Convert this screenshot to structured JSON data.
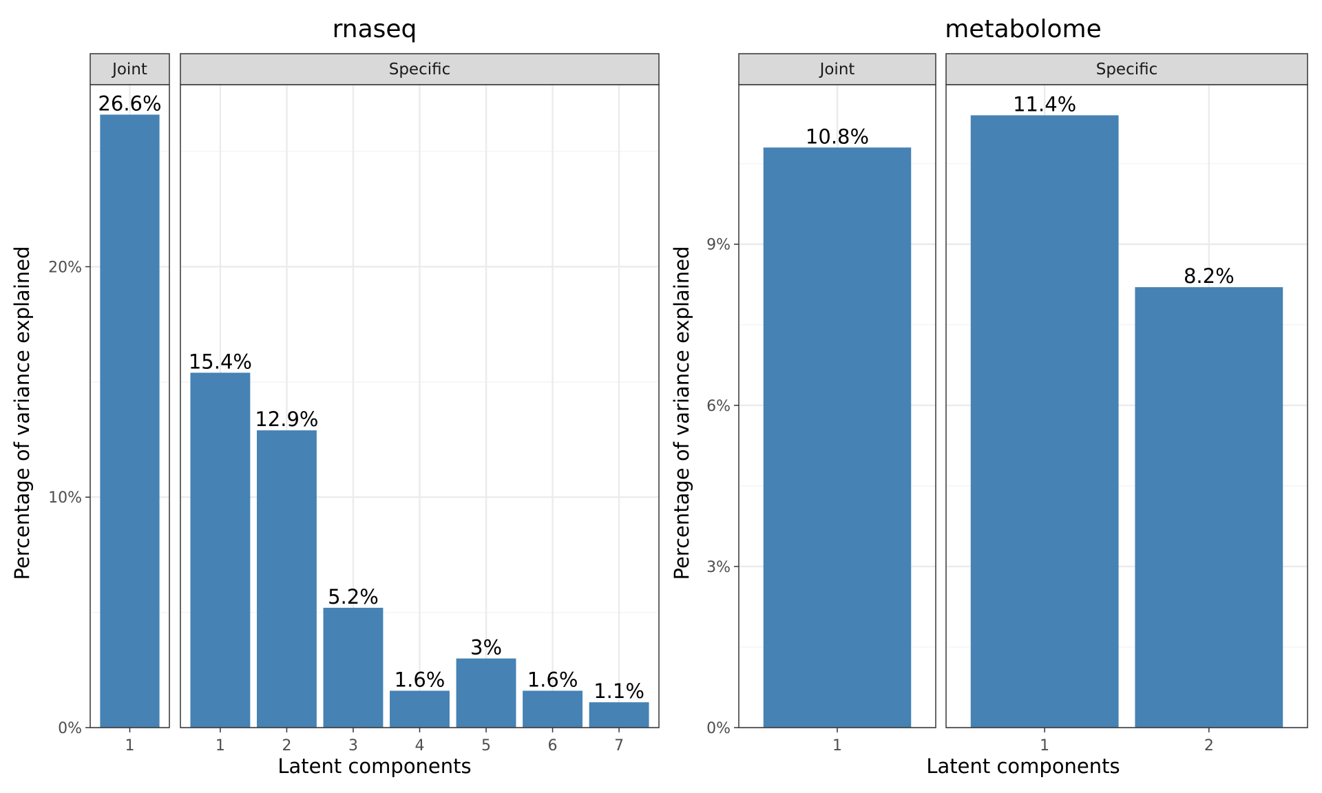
{
  "chart_data": [
    {
      "type": "bar",
      "title": "rnaseq",
      "xlabel": "Latent components",
      "ylabel": "Percentage of variance explained",
      "ylim": [
        0,
        27.9
      ],
      "yticks": [
        "0%",
        "10%",
        "20%"
      ],
      "y_major_values": [
        0,
        10,
        20
      ],
      "y_minor_values": [
        5,
        15,
        25
      ],
      "grid": true,
      "bar_color": "#4682B4",
      "facets": [
        {
          "strip": "Joint",
          "categories": [
            "1"
          ],
          "values": [
            26.6
          ],
          "labels": [
            "26.6%"
          ]
        },
        {
          "strip": "Specific",
          "categories": [
            "1",
            "2",
            "3",
            "4",
            "5",
            "6",
            "7"
          ],
          "values": [
            15.4,
            12.9,
            5.2,
            1.6,
            3.0,
            1.6,
            1.1
          ],
          "labels": [
            "15.4%",
            "12.9%",
            "5.2%",
            "1.6%",
            "3%",
            "1.6%",
            "1.1%"
          ]
        }
      ]
    },
    {
      "type": "bar",
      "title": "metabolome",
      "xlabel": "Latent components",
      "ylabel": "Percentage of variance explained",
      "ylim": [
        0,
        11.97
      ],
      "yticks": [
        "0%",
        "3%",
        "6%",
        "9%"
      ],
      "y_major_values": [
        0,
        3,
        6,
        9
      ],
      "y_minor_values": [
        1.5,
        4.5,
        7.5,
        10.5
      ],
      "grid": true,
      "bar_color": "#4682B4",
      "facets": [
        {
          "strip": "Joint",
          "categories": [
            "1"
          ],
          "values": [
            10.8
          ],
          "labels": [
            "10.8%"
          ]
        },
        {
          "strip": "Specific",
          "categories": [
            "1",
            "2"
          ],
          "values": [
            11.4,
            8.2
          ],
          "labels": [
            "11.4%",
            "8.2%"
          ]
        }
      ]
    }
  ]
}
